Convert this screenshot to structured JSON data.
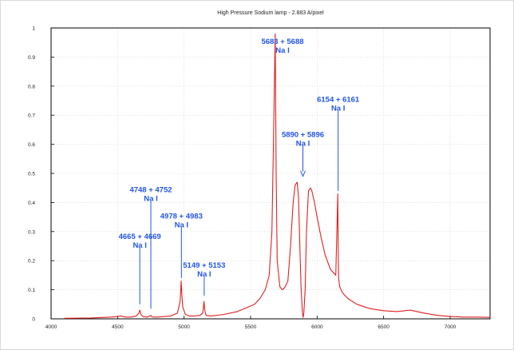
{
  "chart_data": {
    "type": "line",
    "title": "High Pressure Sodium lamp - 2.883 A/pixel",
    "xlabel": "",
    "ylabel": "",
    "xlim": [
      4000,
      7300
    ],
    "ylim": [
      0,
      1
    ],
    "x_ticks": [
      4000,
      4500,
      5000,
      5500,
      6000,
      6500,
      7000
    ],
    "y_ticks": [
      0,
      0.1,
      0.2,
      0.3,
      0.4,
      0.5,
      0.6,
      0.7,
      0.8,
      0.9,
      1
    ],
    "grid": true,
    "line_color": "#e02020",
    "annotation_color": "#2255e6",
    "series": [
      {
        "x": [
          4100,
          4300,
          4450,
          4500,
          4520,
          4540,
          4560,
          4600,
          4640,
          4660,
          4668,
          4675,
          4690,
          4720,
          4745,
          4750,
          4755,
          4770,
          4800,
          4850,
          4900,
          4950,
          4970,
          4978,
          4982,
          4990,
          5010,
          5040,
          5080,
          5120,
          5140,
          5150,
          5155,
          5165,
          5200,
          5300,
          5400,
          5480,
          5530,
          5570,
          5610,
          5640,
          5660,
          5675,
          5685,
          5692,
          5700,
          5720,
          5740,
          5760,
          5780,
          5800,
          5820,
          5835,
          5850,
          5860,
          5870,
          5880,
          5890,
          5895,
          5900,
          5910,
          5920,
          5935,
          5950,
          5960,
          5980,
          6000,
          6030,
          6060,
          6100,
          6140,
          6155,
          6158,
          6161,
          6170,
          6190,
          6230,
          6300,
          6400,
          6500,
          6600,
          6700,
          6800,
          6900,
          7000,
          7100,
          7200,
          7300
        ],
        "y": [
          0.002,
          0.003,
          0.006,
          0.008,
          0.01,
          0.008,
          0.006,
          0.006,
          0.01,
          0.02,
          0.03,
          0.015,
          0.008,
          0.006,
          0.01,
          0.012,
          0.008,
          0.006,
          0.006,
          0.008,
          0.01,
          0.02,
          0.06,
          0.13,
          0.09,
          0.04,
          0.015,
          0.01,
          0.01,
          0.012,
          0.02,
          0.06,
          0.03,
          0.012,
          0.01,
          0.015,
          0.025,
          0.04,
          0.05,
          0.07,
          0.1,
          0.15,
          0.3,
          0.7,
          0.98,
          0.5,
          0.2,
          0.11,
          0.1,
          0.11,
          0.13,
          0.25,
          0.4,
          0.46,
          0.47,
          0.42,
          0.25,
          0.1,
          0.02,
          0.005,
          0.02,
          0.1,
          0.3,
          0.44,
          0.45,
          0.44,
          0.4,
          0.35,
          0.28,
          0.22,
          0.17,
          0.15,
          0.43,
          0.25,
          0.14,
          0.11,
          0.09,
          0.07,
          0.05,
          0.035,
          0.028,
          0.025,
          0.03,
          0.02,
          0.012,
          0.008,
          0.006,
          0.006,
          0.005
        ]
      }
    ],
    "annotations": [
      {
        "lines": [
          "4665 + 4669",
          "Na I"
        ],
        "x": 4667,
        "y": 0.3,
        "tip": 0.05,
        "arrow": false
      },
      {
        "lines": [
          "4748 + 4752",
          "Na I"
        ],
        "x": 4750,
        "y": 0.46,
        "tip": 0.035,
        "arrow": false
      },
      {
        "lines": [
          "4978 + 4983",
          "Na I"
        ],
        "x": 4980,
        "y": 0.37,
        "tip": 0.14,
        "arrow": false
      },
      {
        "lines": [
          "5149 + 5153",
          "Na I"
        ],
        "x": 5151,
        "y": 0.2,
        "tip": 0.08,
        "arrow": false
      },
      {
        "lines": [
          "5683 + 5688",
          "Na I"
        ],
        "x": 5740,
        "y": 0.97,
        "tip": 0.97,
        "arrow": false
      },
      {
        "lines": [
          "5890 + 5896",
          "Na I"
        ],
        "x": 5893,
        "y": 0.65,
        "tip": 0.49,
        "arrow": true
      },
      {
        "lines": [
          "6154 + 6161",
          "Na I"
        ],
        "x": 6158,
        "y": 0.77,
        "tip": 0.44,
        "arrow": false
      }
    ]
  }
}
